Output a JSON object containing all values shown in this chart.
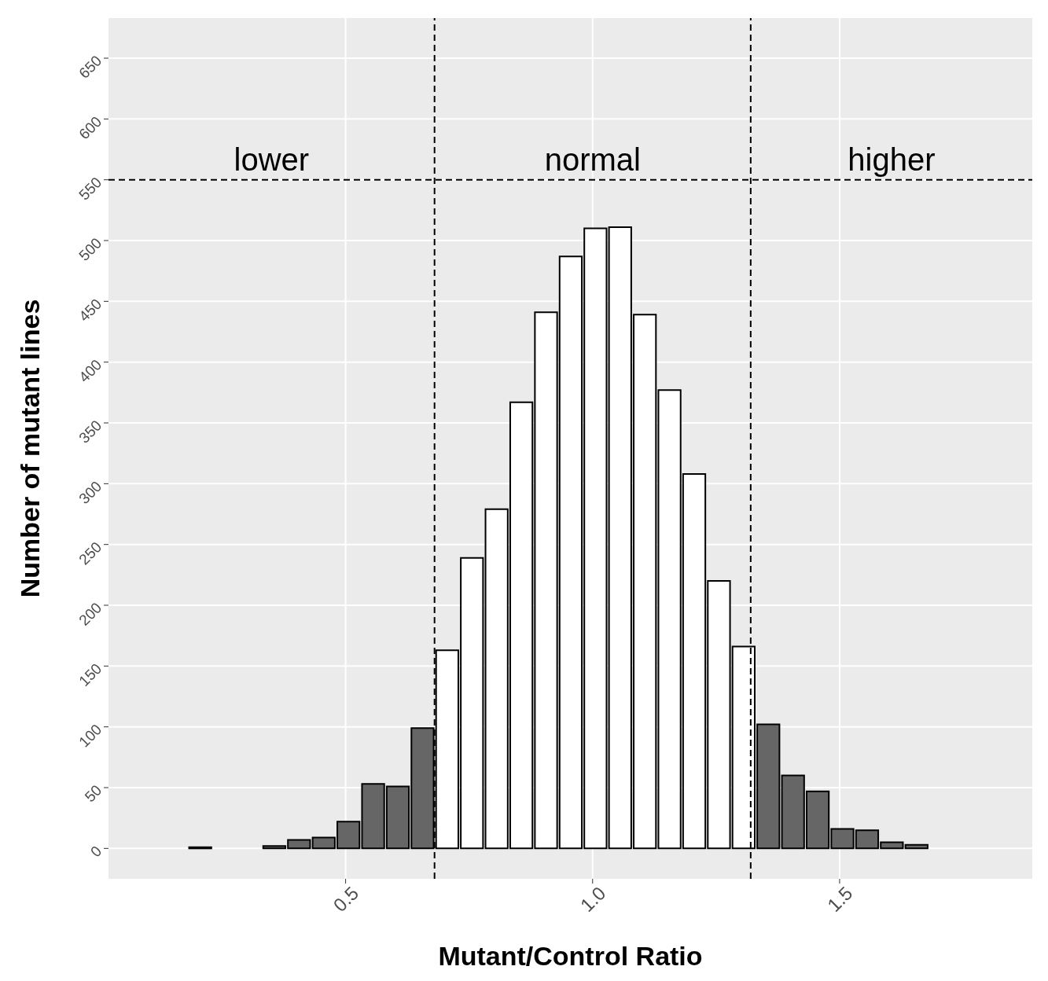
{
  "chart_data": {
    "type": "histogram",
    "xlabel": "Mutant/Control Ratio",
    "ylabel": "Number of mutant lines",
    "bins": [
      0.13,
      0.18,
      0.23,
      0.28,
      0.33,
      0.38,
      0.43,
      0.48,
      0.53,
      0.58,
      0.63,
      0.68,
      0.73,
      0.78,
      0.83,
      0.88,
      0.93,
      0.98,
      1.03,
      1.08,
      1.13,
      1.18,
      1.23,
      1.28,
      1.33,
      1.38,
      1.43,
      1.48,
      1.53,
      1.58,
      1.63,
      1.68,
      1.73,
      1.78
    ],
    "values": [
      0,
      1,
      0,
      0,
      2,
      7,
      9,
      22,
      53,
      51,
      99,
      163,
      239,
      279,
      367,
      441,
      487,
      510,
      511,
      439,
      377,
      308,
      220,
      166,
      102,
      60,
      47,
      16,
      15,
      5,
      3,
      0,
      0
    ],
    "colors": [
      "#666666",
      "#666666",
      "#666666",
      "#666666",
      "#666666",
      "#666666",
      "#666666",
      "#666666",
      "#666666",
      "#666666",
      "#666666",
      "#ffffff",
      "#ffffff",
      "#ffffff",
      "#ffffff",
      "#ffffff",
      "#ffffff",
      "#ffffff",
      "#ffffff",
      "#ffffff",
      "#ffffff",
      "#ffffff",
      "#ffffff",
      "#ffffff",
      "#666666",
      "#666666",
      "#666666",
      "#666666",
      "#666666",
      "#666666",
      "#666666",
      "#666666",
      "#666666"
    ],
    "xlim": [
      0.02,
      1.89
    ],
    "xticks": [
      0.5,
      {
        "value": 1,
        "label": "1.0"
      },
      1.5
    ],
    "ylim": [
      -25,
      683
    ],
    "yticks": [
      0,
      50,
      100,
      150,
      200,
      250,
      300,
      350,
      400,
      450,
      500,
      550,
      600,
      650
    ],
    "grid": true,
    "ref_lines": [
      {
        "axis": "x",
        "value": 0.68,
        "line_style": "dashed",
        "color": "#000000"
      },
      {
        "axis": "x",
        "value": 1.32,
        "line_style": "dashed",
        "color": "#000000"
      },
      {
        "axis": "y",
        "value": 550,
        "line_style": "dashed",
        "color": "#000000"
      }
    ],
    "annotations": [
      "lower",
      "normal",
      "higher"
    ]
  }
}
